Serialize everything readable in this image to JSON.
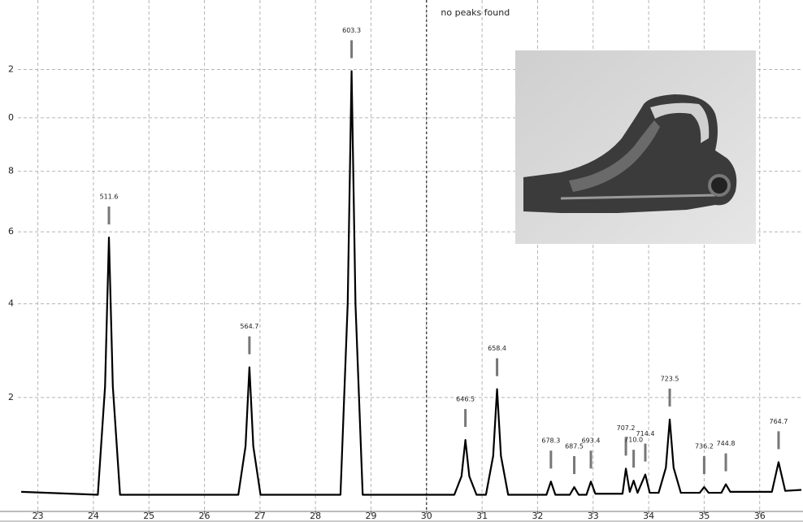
{
  "chart_data": {
    "type": "line",
    "yscale": "sqrt",
    "grid": true,
    "xlim": [
      22.64,
      36.78
    ],
    "ylim": [
      0.5,
      15.2
    ],
    "xticks": [
      23,
      24,
      25,
      26,
      27,
      28,
      29,
      30,
      31,
      32,
      33,
      34,
      35,
      36
    ],
    "yticks": [
      {
        "value": 12,
        "label": "2"
      },
      {
        "value": 10,
        "label": "0"
      },
      8,
      6,
      4,
      2
    ],
    "marker_x": 30,
    "marker_label": "no peaks found",
    "series": [
      {
        "color": "#000000",
        "x": [
          22.7,
          24.08,
          24.21,
          24.28,
          24.35,
          24.48,
          26.61,
          26.74,
          26.81,
          26.88,
          27.01,
          28.45,
          28.58,
          28.65,
          28.72,
          28.85,
          30.5,
          30.63,
          30.7,
          30.77,
          30.9,
          31.07,
          31.2,
          31.27,
          31.34,
          31.47,
          32.16,
          32.24,
          32.32,
          32.58,
          32.66,
          32.74,
          32.88,
          32.96,
          33.04,
          33.53,
          33.59,
          33.66,
          33.73,
          33.8,
          33.94,
          34.02,
          34.18,
          34.31,
          34.38,
          34.45,
          34.58,
          34.92,
          35.0,
          35.08,
          35.31,
          35.39,
          35.47,
          36.22,
          36.34,
          36.46,
          36.75
        ],
        "values": [
          0.68,
          0.65,
          2.2,
          5.83,
          2.2,
          0.65,
          0.65,
          1.23,
          2.57,
          1.23,
          0.65,
          0.65,
          4.0,
          11.93,
          4.0,
          0.65,
          0.65,
          0.85,
          1.32,
          0.85,
          0.65,
          0.65,
          1.1,
          2.15,
          1.1,
          0.65,
          0.65,
          0.79,
          0.65,
          0.65,
          0.73,
          0.65,
          0.65,
          0.79,
          0.66,
          0.66,
          0.94,
          0.68,
          0.8,
          0.67,
          0.87,
          0.67,
          0.67,
          0.95,
          1.63,
          0.95,
          0.67,
          0.67,
          0.73,
          0.67,
          0.67,
          0.76,
          0.68,
          0.68,
          1.02,
          0.69,
          0.7
        ]
      }
    ],
    "annotations": [
      {
        "text": "511.6",
        "x": 24.28,
        "y": 5.83
      },
      {
        "text": "564.7",
        "x": 26.81,
        "y": 2.57
      },
      {
        "text": "603.3",
        "x": 28.65,
        "y": 11.93
      },
      {
        "text": "646.5",
        "x": 30.7,
        "y": 1.32
      },
      {
        "text": "658.4",
        "x": 31.27,
        "y": 2.15
      },
      {
        "text": "678.3",
        "x": 32.24,
        "y": 0.79
      },
      {
        "text": "687.5",
        "x": 32.66,
        "y": 0.73
      },
      {
        "text": "693.4",
        "x": 32.96,
        "y": 0.79
      },
      {
        "text": "707.2",
        "x": 33.59,
        "y": 0.94
      },
      {
        "text": "710.0",
        "x": 33.73,
        "y": 0.8
      },
      {
        "text": "714.4",
        "x": 33.94,
        "y": 0.87
      },
      {
        "text": "723.5",
        "x": 34.38,
        "y": 1.63
      },
      {
        "text": "736.2",
        "x": 35.0,
        "y": 0.73
      },
      {
        "text": "744.8",
        "x": 35.39,
        "y": 0.76
      },
      {
        "text": "764.7",
        "x": 36.34,
        "y": 1.02
      }
    ]
  }
}
